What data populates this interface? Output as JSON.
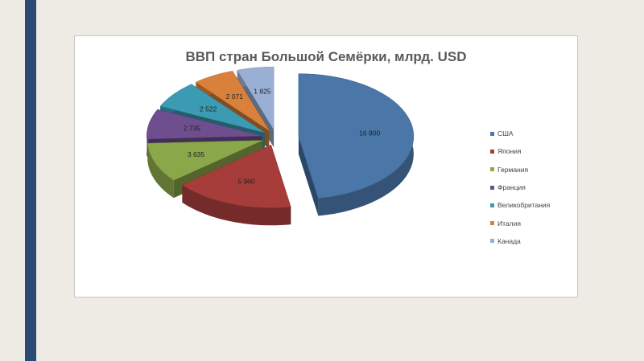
{
  "chart_data": {
    "type": "pie",
    "title": "ВВП стран Большой Семёрки, млрд. USD",
    "categories": [
      "США",
      "Япония",
      "Германия",
      "Франция",
      "Великобритания",
      "Италия",
      "Канада"
    ],
    "values": [
      16800,
      5960,
      3635,
      2735,
      2522,
      2071,
      1825
    ],
    "value_labels": [
      "16 800",
      "5 960",
      "3 635",
      "2 735",
      "2 522",
      "2 071",
      "1 825"
    ],
    "colors": [
      "#4a76a8",
      "#a63d3a",
      "#8aa84a",
      "#6e4e8e",
      "#3b9bb3",
      "#d9813a",
      "#9aafd4"
    ],
    "legend_position": "right",
    "style": "3d-exploded"
  }
}
